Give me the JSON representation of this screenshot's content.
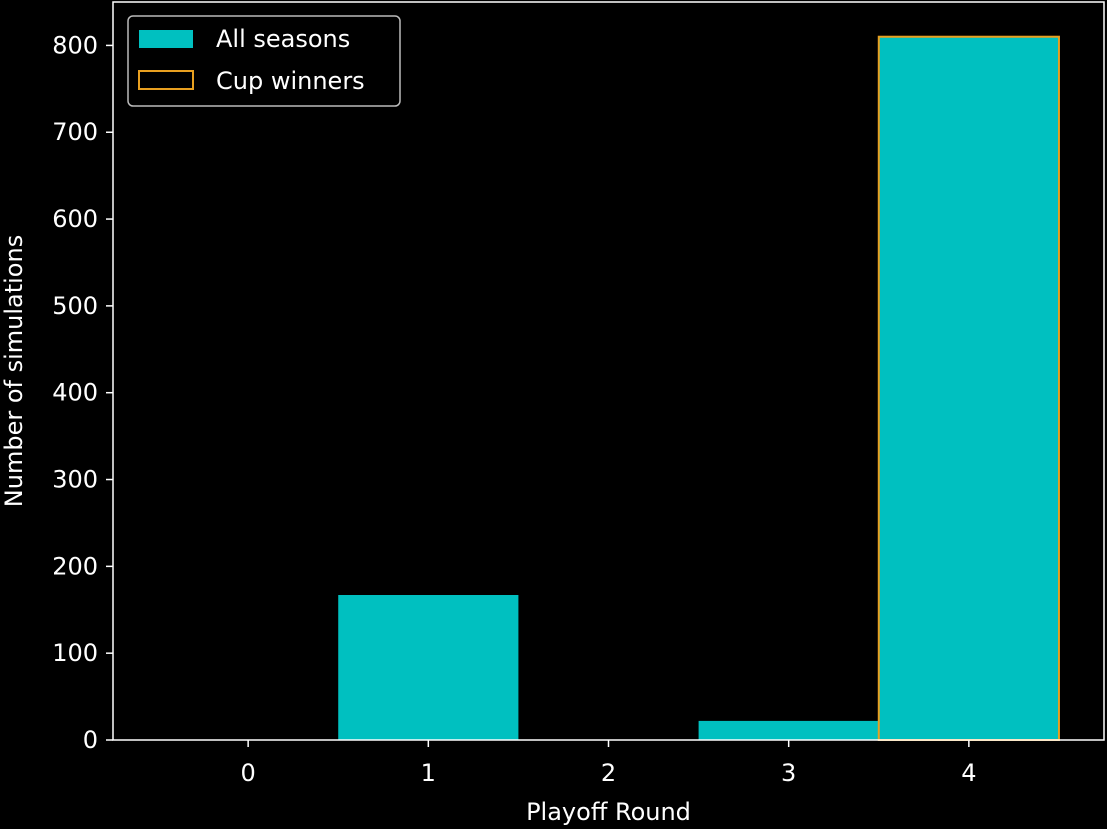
{
  "chart_data": {
    "type": "bar",
    "categories": [
      "0",
      "1",
      "2",
      "3",
      "4"
    ],
    "x": [
      0,
      1,
      2,
      3,
      4
    ],
    "series": [
      {
        "name": "All seasons",
        "values": [
          0,
          167,
          0,
          22,
          810
        ],
        "color": "#00c0c0",
        "style": "filled"
      },
      {
        "name": "Cup winners",
        "values": [
          0,
          0,
          0,
          0,
          810
        ],
        "color": "#e8a020",
        "style": "outline"
      }
    ],
    "xlabel": "Playoff Round",
    "ylabel": "Number of simulations",
    "xlim": [
      -0.75,
      4.75
    ],
    "ylim": [
      0,
      850
    ],
    "yticks": [
      0,
      100,
      200,
      300,
      400,
      500,
      600,
      700,
      800
    ],
    "xticks": [
      0,
      1,
      2,
      3,
      4
    ],
    "legend_position": "top-left",
    "background": "#000000",
    "foreground": "#ffffff",
    "grid": false
  }
}
